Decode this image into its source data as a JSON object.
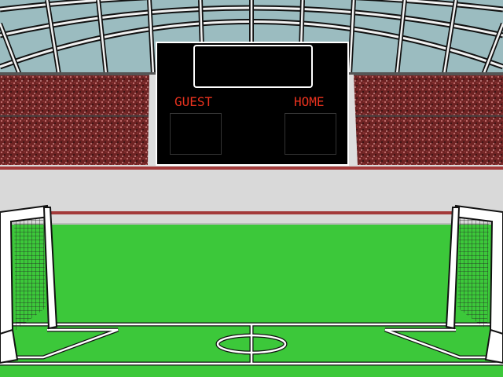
{
  "scoreboard": {
    "guest_label": "GUEST",
    "home_label": "HOME",
    "label_color": "#e8321e"
  },
  "colors": {
    "sky": "#9bbcc0",
    "crowd": "#7a2a2a",
    "pitch": "#3cc83a",
    "track": "#d9d9d9",
    "track_stripe": "#a33a3a",
    "scoreboard_bg": "#000000"
  }
}
